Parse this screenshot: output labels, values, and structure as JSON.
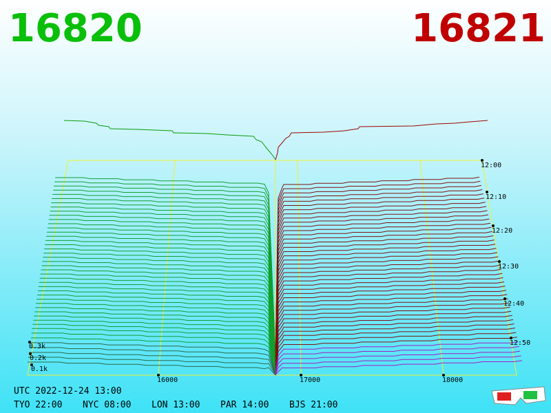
{
  "header": {
    "bid": "16820",
    "ask": "16821"
  },
  "price_axis": [
    "16000",
    "17000",
    "18000"
  ],
  "volume_axis": [
    "0.3k",
    "0.2k",
    "0.1k"
  ],
  "time_axis": [
    "12:00",
    "12:10",
    "12:20",
    "12:30",
    "12:40",
    "12:50"
  ],
  "footer": {
    "utc": "UTC 2022-12-24 13:00",
    "clocks": [
      "TYO 22:00",
      "NYC 08:00",
      "LON 13:00",
      "PAR 14:00",
      "BJS 21:00"
    ]
  }
}
